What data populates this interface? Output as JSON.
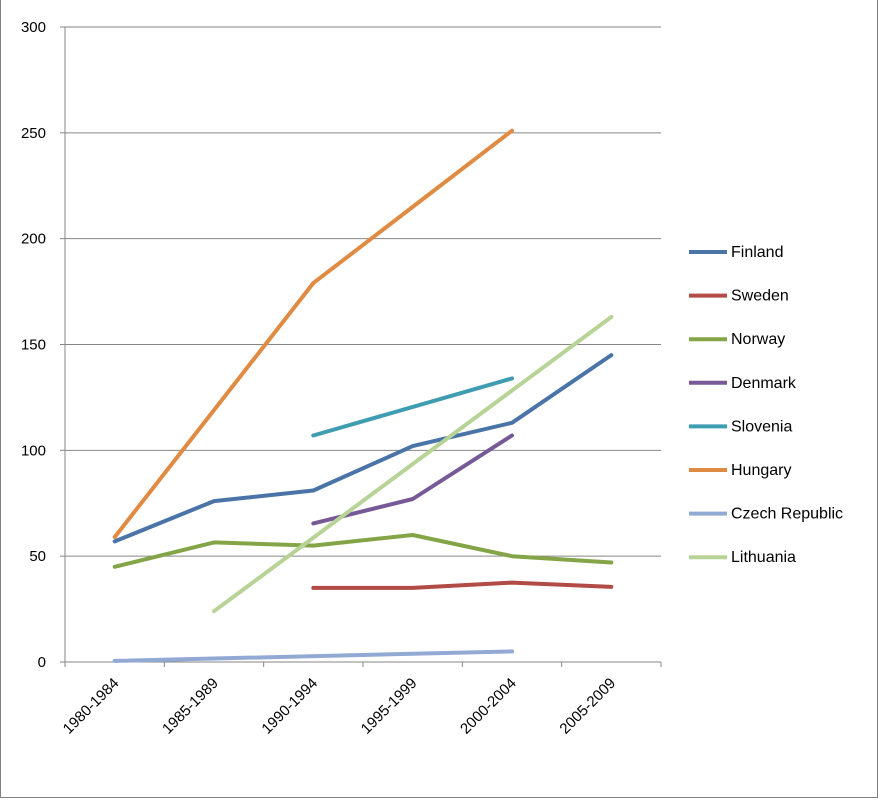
{
  "chart_data": {
    "type": "line",
    "categories": [
      "1980-1984",
      "1985-1989",
      "1990-1994",
      "1995-1999",
      "2000-2004",
      "2005-2009"
    ],
    "ylim": [
      0,
      300
    ],
    "yticks": [
      0,
      50,
      100,
      150,
      200,
      250,
      300
    ],
    "grid": "horizontal",
    "legend_position": "right",
    "series": [
      {
        "name": "Finland",
        "color": "#4a74a8",
        "values": [
          57,
          76,
          81,
          102,
          113,
          145
        ]
      },
      {
        "name": "Sweden",
        "color": "#b24a45",
        "values": [
          null,
          null,
          35,
          35,
          37.5,
          35.5
        ]
      },
      {
        "name": "Norway",
        "color": "#84a547",
        "values": [
          45,
          56.5,
          55,
          60,
          50,
          47
        ]
      },
      {
        "name": "Denmark",
        "color": "#765996",
        "values": [
          null,
          null,
          65.5,
          77,
          107,
          null
        ]
      },
      {
        "name": "Slovenia",
        "color": "#3f9db1",
        "values": [
          null,
          null,
          107,
          null,
          134,
          null
        ]
      },
      {
        "name": "Hungary",
        "color": "#e08b43",
        "values": [
          59,
          null,
          179,
          null,
          251,
          null
        ]
      },
      {
        "name": "Czech Republic",
        "color": "#92a9d4",
        "values": [
          0.5,
          null,
          null,
          null,
          5,
          null
        ]
      },
      {
        "name": "Lithuania",
        "color": "#b7d396",
        "values": [
          null,
          24,
          null,
          null,
          null,
          163
        ]
      }
    ]
  }
}
